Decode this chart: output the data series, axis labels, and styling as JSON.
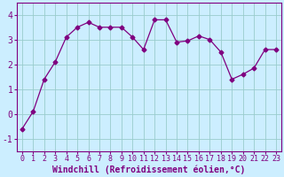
{
  "x": [
    0,
    1,
    2,
    3,
    4,
    5,
    6,
    7,
    8,
    9,
    10,
    11,
    12,
    13,
    14,
    15,
    16,
    17,
    18,
    19,
    20,
    21,
    22,
    23
  ],
  "y": [
    -0.6,
    0.1,
    1.4,
    2.1,
    3.1,
    3.5,
    3.7,
    3.5,
    3.5,
    3.5,
    3.1,
    2.6,
    3.8,
    3.8,
    2.9,
    2.95,
    3.15,
    3.0,
    2.5,
    1.4,
    1.6,
    1.85,
    2.6,
    2.6
  ],
  "line_color": "#800080",
  "marker": "D",
  "marker_size": 2.5,
  "bg_color": "#cceeff",
  "grid_color": "#99cccc",
  "xlabel": "Windchill (Refroidissement éolien,°C)",
  "xlabel_color": "#800080",
  "xlabel_fontsize": 7,
  "xlim": [
    -0.5,
    23.5
  ],
  "ylim": [
    -1.5,
    4.5
  ],
  "yticks": [
    -1,
    0,
    1,
    2,
    3,
    4
  ],
  "xticks": [
    0,
    1,
    2,
    3,
    4,
    5,
    6,
    7,
    8,
    9,
    10,
    11,
    12,
    13,
    14,
    15,
    16,
    17,
    18,
    19,
    20,
    21,
    22,
    23
  ],
  "tick_color": "#800080",
  "tick_fontsize": 6,
  "ytick_fontsize": 7
}
